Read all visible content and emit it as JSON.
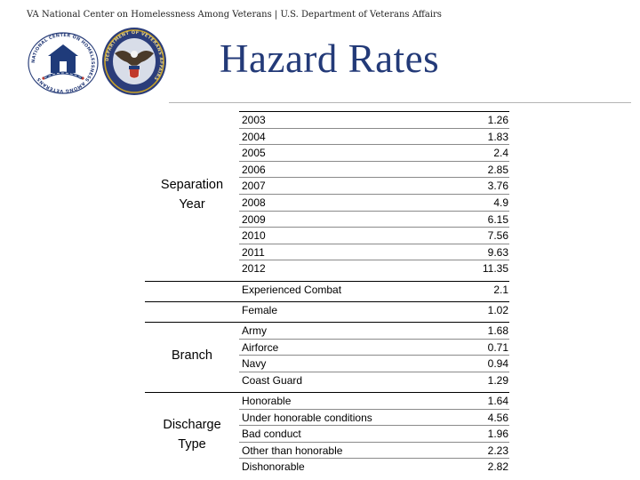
{
  "header": {
    "org_text": "VA National Center on Homelessness Among Veterans | U.S. Department of Veterans Affairs",
    "logos": [
      {
        "name": "national-center-logo",
        "text": "NATIONAL CENTER ON HOMELESSNESS AMONG VETERANS"
      },
      {
        "name": "va-seal",
        "text": "DEPARTMENT OF VETERANS AFFAIRS"
      }
    ]
  },
  "title": "Hazard Rates",
  "colors": {
    "title": "#233a78"
  },
  "table": {
    "groups": [
      {
        "label_lines": [
          "Separation",
          "Year"
        ],
        "rows": [
          {
            "label": "2003",
            "value": "1.26"
          },
          {
            "label": "2004",
            "value": "1.83"
          },
          {
            "label": "2005",
            "value": "2.4"
          },
          {
            "label": "2006",
            "value": "2.85"
          },
          {
            "label": "2007",
            "value": "3.76"
          },
          {
            "label": "2008",
            "value": "4.9"
          },
          {
            "label": "2009",
            "value": "6.15"
          },
          {
            "label": "2010",
            "value": "7.56"
          },
          {
            "label": "2011",
            "value": "9.63"
          },
          {
            "label": "2012",
            "value": "11.35"
          }
        ]
      },
      {
        "label_lines": [],
        "rows": [
          {
            "label": "Experienced Combat",
            "value": "2.1"
          }
        ]
      },
      {
        "label_lines": [],
        "rows": [
          {
            "label": "Female",
            "value": "1.02"
          }
        ]
      },
      {
        "label_lines": [
          "Branch"
        ],
        "rows": [
          {
            "label": "Army",
            "value": "1.68"
          },
          {
            "label": "Airforce",
            "value": "0.71"
          },
          {
            "label": "Navy",
            "value": "0.94"
          },
          {
            "label": "Coast Guard",
            "value": "1.29"
          }
        ]
      },
      {
        "label_lines": [
          "Discharge",
          "Type"
        ],
        "rows": [
          {
            "label": "Honorable",
            "value": "1.64"
          },
          {
            "label": "Under honorable conditions",
            "value": "4.56"
          },
          {
            "label": "Bad conduct",
            "value": "1.96"
          },
          {
            "label": "Other than honorable",
            "value": "2.23"
          },
          {
            "label": "Dishonorable",
            "value": "2.82"
          }
        ]
      }
    ]
  }
}
